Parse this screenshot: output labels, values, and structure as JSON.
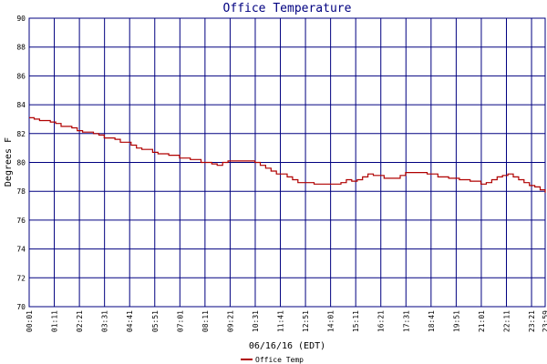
{
  "chart_data": {
    "type": "line",
    "title": "Office Temperature",
    "xlabel": "06/16/16 (EDT)",
    "ylabel": "Degrees F",
    "ylim": [
      70,
      90
    ],
    "yticks": [
      70,
      72,
      74,
      76,
      78,
      80,
      82,
      84,
      86,
      88,
      90
    ],
    "xlim": [
      "00:01",
      "23:59"
    ],
    "xticks": [
      "00:01",
      "01:11",
      "02:21",
      "03:31",
      "04:41",
      "05:51",
      "07:01",
      "08:11",
      "09:21",
      "10:31",
      "11:41",
      "12:51",
      "14:01",
      "15:11",
      "16:21",
      "17:31",
      "18:41",
      "19:51",
      "21:01",
      "22:11",
      "23:21",
      "23:59"
    ],
    "grid": true,
    "legend_position": "bottom-left",
    "series": [
      {
        "name": "Office Temp",
        "color": "#b00000",
        "x": [
          "00:01",
          "00:15",
          "00:30",
          "01:00",
          "01:15",
          "01:30",
          "02:00",
          "02:15",
          "02:30",
          "03:00",
          "03:15",
          "03:30",
          "04:00",
          "04:15",
          "04:45",
          "05:00",
          "05:15",
          "05:45",
          "06:00",
          "06:30",
          "07:00",
          "07:30",
          "08:00",
          "08:30",
          "08:45",
          "09:00",
          "09:15",
          "09:30",
          "10:00",
          "10:30",
          "10:45",
          "11:00",
          "11:15",
          "11:30",
          "12:00",
          "12:15",
          "12:30",
          "13:00",
          "13:15",
          "14:00",
          "14:30",
          "14:45",
          "15:00",
          "15:15",
          "15:30",
          "15:45",
          "16:00",
          "16:30",
          "17:00",
          "17:15",
          "17:30",
          "18:00",
          "18:30",
          "19:00",
          "19:30",
          "20:00",
          "20:30",
          "21:00",
          "21:15",
          "21:30",
          "21:45",
          "22:00",
          "22:15",
          "22:30",
          "22:45",
          "23:00",
          "23:15",
          "23:30",
          "23:45",
          "23:59"
        ],
        "values": [
          83.1,
          83.0,
          82.9,
          82.8,
          82.7,
          82.5,
          82.4,
          82.2,
          82.1,
          82.0,
          81.9,
          81.7,
          81.6,
          81.4,
          81.2,
          81.0,
          80.9,
          80.7,
          80.6,
          80.5,
          80.3,
          80.2,
          80.0,
          79.9,
          79.8,
          80.0,
          80.1,
          80.1,
          80.1,
          80.0,
          79.8,
          79.6,
          79.4,
          79.2,
          79.0,
          78.8,
          78.6,
          78.6,
          78.5,
          78.5,
          78.6,
          78.8,
          78.7,
          78.8,
          79.0,
          79.2,
          79.1,
          78.9,
          78.9,
          79.1,
          79.3,
          79.3,
          79.2,
          79.0,
          78.9,
          78.8,
          78.7,
          78.5,
          78.6,
          78.8,
          79.0,
          79.1,
          79.2,
          79.0,
          78.8,
          78.6,
          78.4,
          78.3,
          78.1,
          77.9
        ]
      }
    ]
  }
}
